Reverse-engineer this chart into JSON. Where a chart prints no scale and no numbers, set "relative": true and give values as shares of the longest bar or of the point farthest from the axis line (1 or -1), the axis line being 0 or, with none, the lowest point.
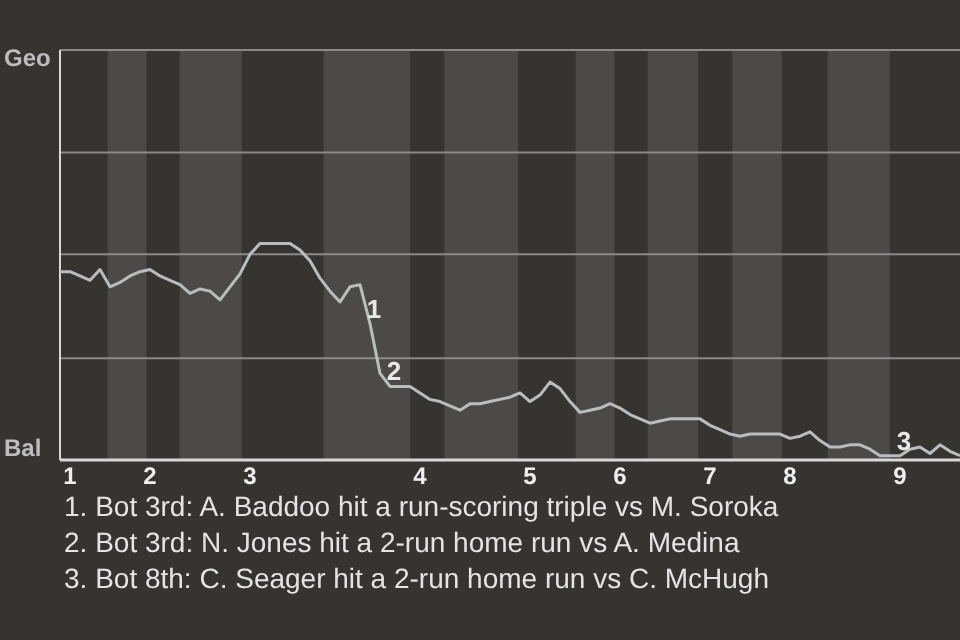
{
  "chart_data": {
    "type": "line",
    "relative": true,
    "categories": [
      null,
      "1",
      null,
      null,
      null,
      null,
      null,
      null,
      null,
      "2",
      null,
      null,
      null,
      null,
      null,
      null,
      null,
      null,
      null,
      "3",
      null,
      null,
      null,
      null,
      null,
      null,
      null,
      null,
      null,
      null,
      null,
      null,
      null,
      null,
      null,
      null,
      "4",
      null,
      null,
      null,
      null,
      null,
      null,
      null,
      null,
      null,
      null,
      "5",
      null,
      null,
      null,
      null,
      null,
      null,
      null,
      null,
      "6",
      null,
      null,
      null,
      null,
      null,
      null,
      null,
      null,
      "7",
      null,
      null,
      null,
      null,
      null,
      null,
      null,
      "8",
      null,
      null,
      null,
      null,
      null,
      null,
      null,
      null,
      null,
      null,
      "9",
      null,
      null,
      null,
      null,
      null,
      null
    ],
    "series": [
      {
        "color": "#b9bdbd",
        "values": [
          0.87,
          0.87,
          0.85,
          0.83,
          0.88,
          0.8,
          0.82,
          0.85,
          0.87,
          0.88,
          0.85,
          0.83,
          0.81,
          0.77,
          0.79,
          0.78,
          0.74,
          0.8,
          0.86,
          0.95,
          1,
          1,
          1,
          1,
          0.97,
          0.92,
          0.84,
          0.78,
          0.73,
          0.8,
          0.81,
          0.63,
          0.4,
          0.34,
          0.34,
          0.34,
          0.31,
          0.28,
          0.27,
          0.25,
          0.23,
          0.26,
          0.26,
          0.27,
          0.28,
          0.29,
          0.31,
          0.27,
          0.3,
          0.36,
          0.33,
          0.27,
          0.22,
          0.23,
          0.24,
          0.26,
          0.24,
          0.21,
          0.19,
          0.17,
          0.18,
          0.19,
          0.19,
          0.19,
          0.19,
          0.16,
          0.14,
          0.12,
          0.11,
          0.12,
          0.12,
          0.12,
          0.12,
          0.1,
          0.11,
          0.13,
          0.09,
          0.06,
          0.06,
          0.07,
          0.07,
          0.05,
          0.02,
          0.02,
          0.02,
          0.05,
          0.06,
          0.03,
          0.07,
          0.04,
          0.02
        ]
      }
    ],
    "ref_lines": [
      {
        "axis": "y",
        "value": 0.47,
        "color": "#8a8a88"
      },
      {
        "axis": "y",
        "value": 0.95,
        "color": "#8a8a88"
      },
      {
        "axis": "y",
        "value": 1.42,
        "color": "#8a8a88"
      }
    ],
    "annotations": [
      "Geo",
      "Bal",
      {
        "text": "1",
        "y": 0.63
      },
      {
        "text": "2",
        "y": 0.34
      },
      {
        "text": "3",
        "x": "9",
        "y": 0.02
      },
      "1. Bot 3rd: A. Baddoo hit a run-scoring triple vs M. Soroka",
      "2. Bot 3rd: N. Jones hit a 2-run home run vs A. Medina",
      "3. Bot 8th: C. Seager hit a 2-run home run vs C. McHugh"
    ]
  }
}
